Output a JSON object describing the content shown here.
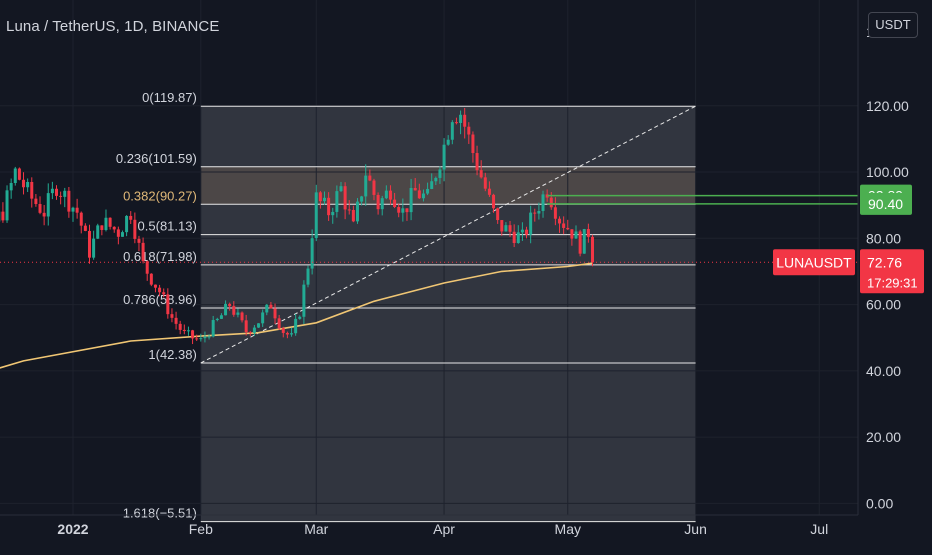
{
  "header": {
    "title": "Luna / TetherUS, 1D, BINANCE",
    "currency_button": "USDT"
  },
  "chart_data": {
    "type": "candlestick",
    "symbol": "LUNAUSDT",
    "exchange": "BINANCE",
    "interval": "1D",
    "y_axis": {
      "ylim": [
        -2,
        148
      ],
      "ticks": [
        "120.00",
        "100.00",
        "80.00",
        "60.00",
        "40.00",
        "20.00",
        "0.00"
      ],
      "tick_values": [
        120,
        100,
        80,
        60,
        40,
        20,
        0
      ],
      "top_partial_label": "1"
    },
    "x_axis": {
      "ticks": [
        {
          "label": "2022",
          "date": "2022-01-01",
          "bold": true
        },
        {
          "label": "Feb",
          "date": "2022-02-01"
        },
        {
          "label": "Mar",
          "date": "2022-03-01"
        },
        {
          "label": "Apr",
          "date": "2022-04-01"
        },
        {
          "label": "May",
          "date": "2022-05-01"
        },
        {
          "label": "Jun",
          "date": "2022-06-01"
        },
        {
          "label": "Jul",
          "date": "2022-07-01"
        }
      ]
    },
    "fib_retracement": {
      "start_date": "2022-02-01",
      "end_date": "2022-06-01",
      "levels": [
        {
          "label": "0(119.87)",
          "value": 119.87
        },
        {
          "label": "0.236(101.59)",
          "value": 101.59
        },
        {
          "label": "0.382(90.27)",
          "value": 90.27,
          "highlight": true
        },
        {
          "label": "0.5(81.13)",
          "value": 81.13
        },
        {
          "label": "0.618(71.98)",
          "value": 71.98
        },
        {
          "label": "0.786(58.96)",
          "value": 58.96
        },
        {
          "label": "1(42.38)",
          "value": 42.38
        },
        {
          "label": "1.618(−5.51)",
          "value": -5.51
        }
      ],
      "trend_line": {
        "from": [
          "2022-02-01",
          42.38
        ],
        "to": [
          "2022-06-01",
          119.87
        ]
      }
    },
    "horizontal_levels": [
      {
        "label": "92.89",
        "value": 92.89,
        "color": "#4caf50",
        "from_date": "2022-04-26"
      },
      {
        "label": "90.40",
        "value": 90.4,
        "color": "#4caf50",
        "from_date": "2022-04-26"
      }
    ],
    "last_price": {
      "symbol": "LUNAUSDT",
      "price": "72.76",
      "value": 72.76,
      "countdown": "17:29:31",
      "color": "#f23645"
    },
    "moving_average": {
      "color": "#f0c674",
      "points": [
        [
          "2021-12-01",
          36
        ],
        [
          "2021-12-20",
          43
        ],
        [
          "2022-01-15",
          49
        ],
        [
          "2022-02-01",
          50.5
        ],
        [
          "2022-02-15",
          51.5
        ],
        [
          "2022-03-01",
          54.5
        ],
        [
          "2022-03-15",
          61
        ],
        [
          "2022-04-01",
          66.5
        ],
        [
          "2022-04-15",
          70
        ],
        [
          "2022-05-01",
          71.5
        ],
        [
          "2022-05-07",
          72.5
        ]
      ]
    },
    "price_path": [
      [
        "2021-12-01",
        52
      ],
      [
        "2021-12-05",
        65
      ],
      [
        "2021-12-10",
        80
      ],
      [
        "2021-12-15",
        88
      ],
      [
        "2021-12-18",
        100
      ],
      [
        "2021-12-22",
        92
      ],
      [
        "2021-12-25",
        88
      ],
      [
        "2021-12-28",
        96
      ],
      [
        "2022-01-02",
        88
      ],
      [
        "2022-01-05",
        76
      ],
      [
        "2022-01-08",
        85
      ],
      [
        "2022-01-12",
        82
      ],
      [
        "2022-01-15",
        88
      ],
      [
        "2022-01-18",
        72
      ],
      [
        "2022-01-22",
        64
      ],
      [
        "2022-01-25",
        56
      ],
      [
        "2022-01-28",
        51
      ],
      [
        "2022-02-01",
        49
      ],
      [
        "2022-02-05",
        55
      ],
      [
        "2022-02-08",
        60
      ],
      [
        "2022-02-12",
        52
      ],
      [
        "2022-02-15",
        55
      ],
      [
        "2022-02-18",
        60
      ],
      [
        "2022-02-21",
        52
      ],
      [
        "2022-02-23",
        50
      ],
      [
        "2022-02-25",
        58
      ],
      [
        "2022-02-27",
        72
      ],
      [
        "2022-03-01",
        92
      ],
      [
        "2022-03-04",
        88
      ],
      [
        "2022-03-07",
        95
      ],
      [
        "2022-03-10",
        83
      ],
      [
        "2022-03-13",
        100
      ],
      [
        "2022-03-16",
        90
      ],
      [
        "2022-03-19",
        95
      ],
      [
        "2022-03-22",
        88
      ],
      [
        "2022-03-25",
        94
      ],
      [
        "2022-03-28",
        92
      ],
      [
        "2022-04-01",
        108
      ],
      [
        "2022-04-03",
        118
      ],
      [
        "2022-04-05",
        118
      ],
      [
        "2022-04-08",
        106
      ],
      [
        "2022-04-11",
        95
      ],
      [
        "2022-04-14",
        84
      ],
      [
        "2022-04-17",
        82
      ],
      [
        "2022-04-20",
        80
      ],
      [
        "2022-04-23",
        88
      ],
      [
        "2022-04-26",
        95
      ],
      [
        "2022-04-29",
        86
      ],
      [
        "2022-05-02",
        82
      ],
      [
        "2022-05-04",
        78
      ],
      [
        "2022-05-06",
        82
      ],
      [
        "2022-05-07",
        72.76
      ]
    ]
  }
}
